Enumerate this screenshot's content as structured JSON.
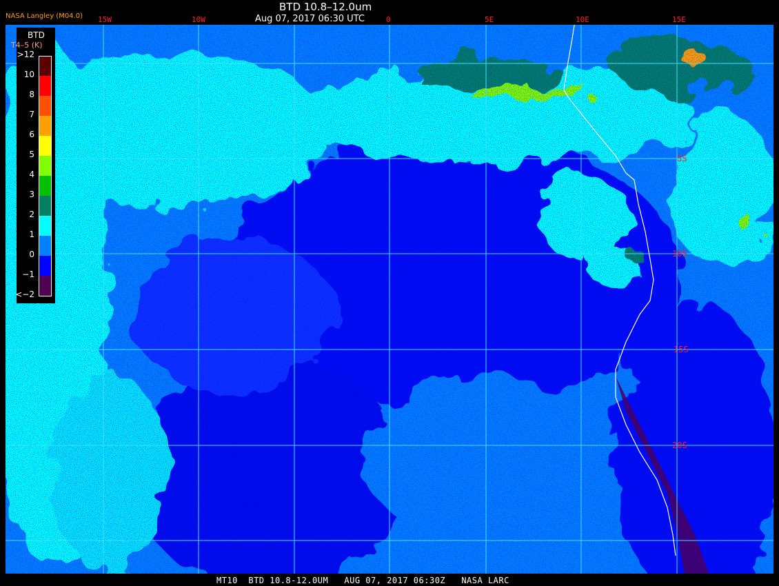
{
  "header": {
    "title": "BTD 10.8–12.0um",
    "datetime": "Aug 07, 2017 06:30 UTC",
    "producer": "NASA Langley (M04.0)"
  },
  "longitude_labels": [
    "15W",
    "10W",
    "0",
    "5E",
    "10E",
    "15E"
  ],
  "latitude_labels": [
    "5S",
    "10S",
    "15S",
    "20S"
  ],
  "legend": {
    "title": "BTD",
    "units": "T4–5 (K)",
    "levels": [
      ">12",
      "10",
      "8",
      "7",
      "6",
      "5",
      "4",
      "3",
      "2",
      "1",
      "0",
      "−1",
      "<−2"
    ],
    "colors": [
      "#5a0000",
      "#ff0000",
      "#ff5000",
      "#ffa000",
      "#ffff00",
      "#80ff00",
      "#00c000",
      "#008060",
      "#00ffff",
      "#0080ff",
      "#0000ff",
      "#500050"
    ]
  },
  "footer": "MT10  BTD 10.8-12.0UM   AUG 07, 2017 06:30Z   NASA LARC",
  "colors": {
    "grid": "#40e0ff",
    "coast": "#ffffff",
    "label_red": "#ff2020",
    "producer": "#ffa000"
  }
}
